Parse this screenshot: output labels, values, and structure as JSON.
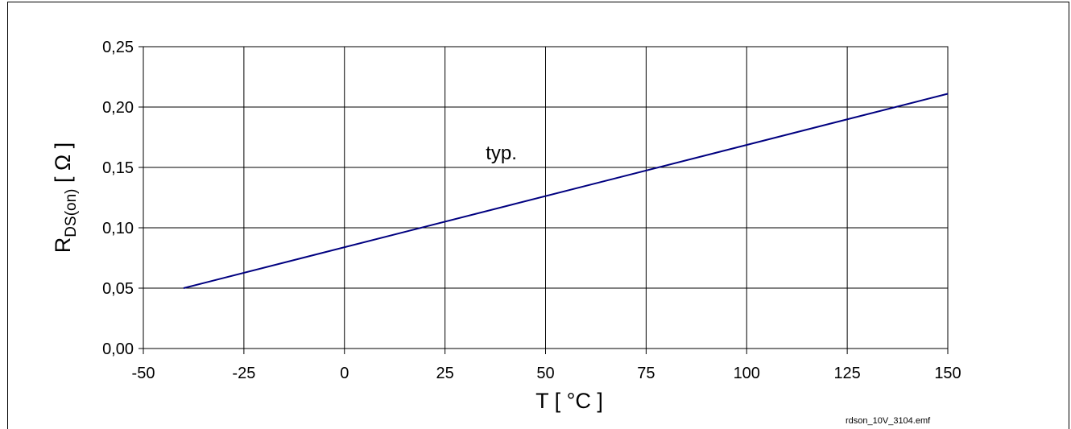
{
  "chart_data": {
    "type": "line",
    "xlabel": "T  [ °C ]",
    "ylabel": {
      "main": "R",
      "sub": "DS(on)",
      "unit": " [ Ω ]"
    },
    "xlim": [
      -50,
      150
    ],
    "ylim": [
      0,
      0.25
    ],
    "x_ticks": [
      "-50",
      "-25",
      "0",
      "25",
      "50",
      "75",
      "100",
      "125",
      "150"
    ],
    "y_ticks": [
      "0,00",
      "0,05",
      "0,10",
      "0,15",
      "0,20",
      "0,25"
    ],
    "grid": true,
    "series": [
      {
        "x": [
          -40,
          150
        ],
        "y": [
          0.05,
          0.211
        ],
        "color": "#000080"
      }
    ],
    "annotations": [
      {
        "text": "typ.",
        "x": 39,
        "y": 0.162
      }
    ],
    "footer": "rdson_10V_3104.emf"
  }
}
